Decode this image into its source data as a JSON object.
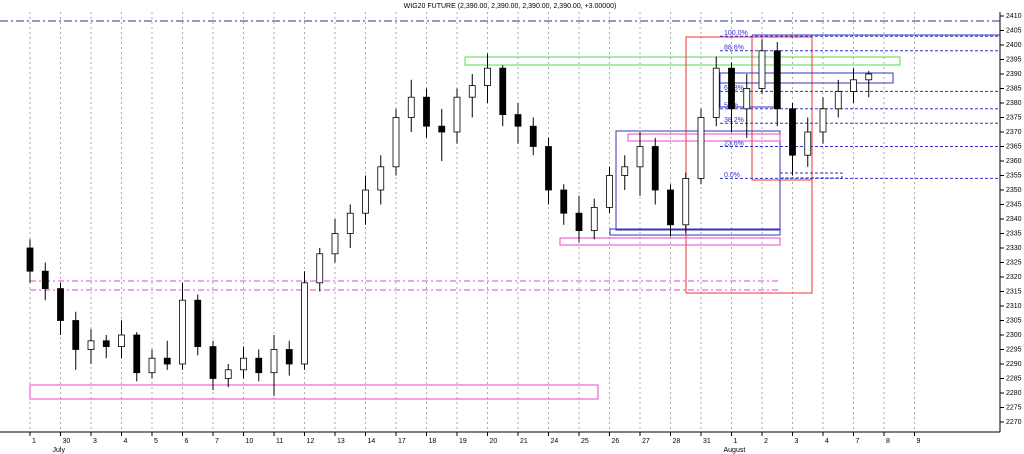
{
  "chart_data": {
    "type": "candlestick",
    "title": "WIG20 FUTURE (2,390.00, 2,390.00, 2,390.00, 2,390.00, +3.00000)",
    "categories": [
      "1",
      null,
      "30",
      null,
      "3",
      null,
      "4",
      null,
      "5",
      null,
      "6",
      null,
      "7",
      null,
      "10",
      null,
      "11",
      null,
      "12",
      null,
      "13",
      null,
      "14",
      null,
      "17",
      null,
      "18",
      null,
      "19",
      null,
      "20",
      null,
      "21",
      null,
      "24",
      null,
      "25",
      null,
      "26",
      null,
      "27",
      null,
      "28",
      null,
      "31",
      null,
      "1",
      null,
      "2",
      null,
      "3",
      null,
      "4",
      null,
      "7",
      null,
      "8",
      null,
      "9",
      null
    ],
    "x_group_labels": [
      "July",
      "August"
    ],
    "open": [
      2330,
      2322,
      2316,
      2305,
      2295,
      2298,
      2296,
      2300,
      2287,
      2292,
      2290,
      2312,
      2296,
      2285,
      2288,
      2292,
      2287,
      2295,
      2290,
      2318,
      2328,
      2335,
      2342,
      2350,
      2358,
      2375,
      2382,
      2372,
      2370,
      2382,
      2386,
      2392,
      2376,
      2372,
      2365,
      2350,
      2342,
      2336,
      2344,
      2355,
      2358,
      2365,
      2350,
      2338,
      2354,
      2375,
      2392,
      2378,
      2385,
      2398,
      2378,
      2362,
      2370,
      2378,
      2384,
      2388,
      null,
      null,
      null,
      null
    ],
    "high": [
      2333,
      2325,
      2318,
      2308,
      2302,
      2300,
      2305,
      2301,
      2295,
      2298,
      2318,
      2314,
      2298,
      2290,
      2296,
      2295,
      2300,
      2298,
      2322,
      2330,
      2340,
      2345,
      2355,
      2362,
      2378,
      2388,
      2385,
      2378,
      2385,
      2390,
      2397,
      2393,
      2380,
      2375,
      2368,
      2352,
      2348,
      2347,
      2358,
      2362,
      2370,
      2368,
      2352,
      2356,
      2378,
      2396,
      2394,
      2390,
      2402,
      2401,
      2380,
      2375,
      2382,
      2388,
      2392,
      2391,
      null,
      null,
      null,
      null
    ],
    "low": [
      2318,
      2312,
      2300,
      2288,
      2290,
      2292,
      2292,
      2284,
      2285,
      2288,
      2288,
      2293,
      2281,
      2282,
      2285,
      2284,
      2279,
      2286,
      2288,
      2315,
      2325,
      2330,
      2338,
      2345,
      2355,
      2370,
      2368,
      2360,
      2366,
      2375,
      2380,
      2372,
      2366,
      2362,
      2345,
      2338,
      2332,
      2333,
      2342,
      2350,
      2348,
      2345,
      2334,
      2335,
      2352,
      2372,
      2370,
      2368,
      2383,
      2372,
      2355,
      2358,
      2366,
      2375,
      2380,
      2382,
      null,
      null,
      null,
      null
    ],
    "close": [
      2322,
      2316,
      2305,
      2295,
      2298,
      2296,
      2300,
      2287,
      2292,
      2290,
      2312,
      2296,
      2285,
      2288,
      2292,
      2287,
      2295,
      2290,
      2318,
      2328,
      2335,
      2342,
      2350,
      2358,
      2375,
      2382,
      2372,
      2370,
      2382,
      2386,
      2392,
      2376,
      2372,
      2365,
      2350,
      2342,
      2336,
      2344,
      2355,
      2358,
      2365,
      2350,
      2338,
      2354,
      2375,
      2392,
      2378,
      2385,
      2398,
      2378,
      2362,
      2370,
      2378,
      2384,
      2388,
      2390,
      null,
      null,
      null,
      null
    ],
    "ylim": [
      2270,
      2410
    ],
    "yticks": [
      2270,
      2275,
      2280,
      2285,
      2290,
      2295,
      2300,
      2305,
      2310,
      2315,
      2320,
      2325,
      2330,
      2335,
      2340,
      2345,
      2350,
      2355,
      2360,
      2365,
      2370,
      2375,
      2380,
      2385,
      2390,
      2395,
      2400,
      2405,
      2410
    ],
    "fib_levels": [
      {
        "value": 2403,
        "label": "100.0%"
      },
      {
        "value": 2398,
        "label": "88.6%"
      },
      {
        "value": 2384,
        "label": "61.8%"
      },
      {
        "value": 2378,
        "label": "50%"
      },
      {
        "value": 2373,
        "label": "38.2%"
      },
      {
        "value": 2365,
        "label": "23.6%"
      },
      {
        "value": 2354,
        "label": "0.0%"
      }
    ],
    "grid": true,
    "up_color": "#ffffff",
    "down_color": "#000000"
  }
}
